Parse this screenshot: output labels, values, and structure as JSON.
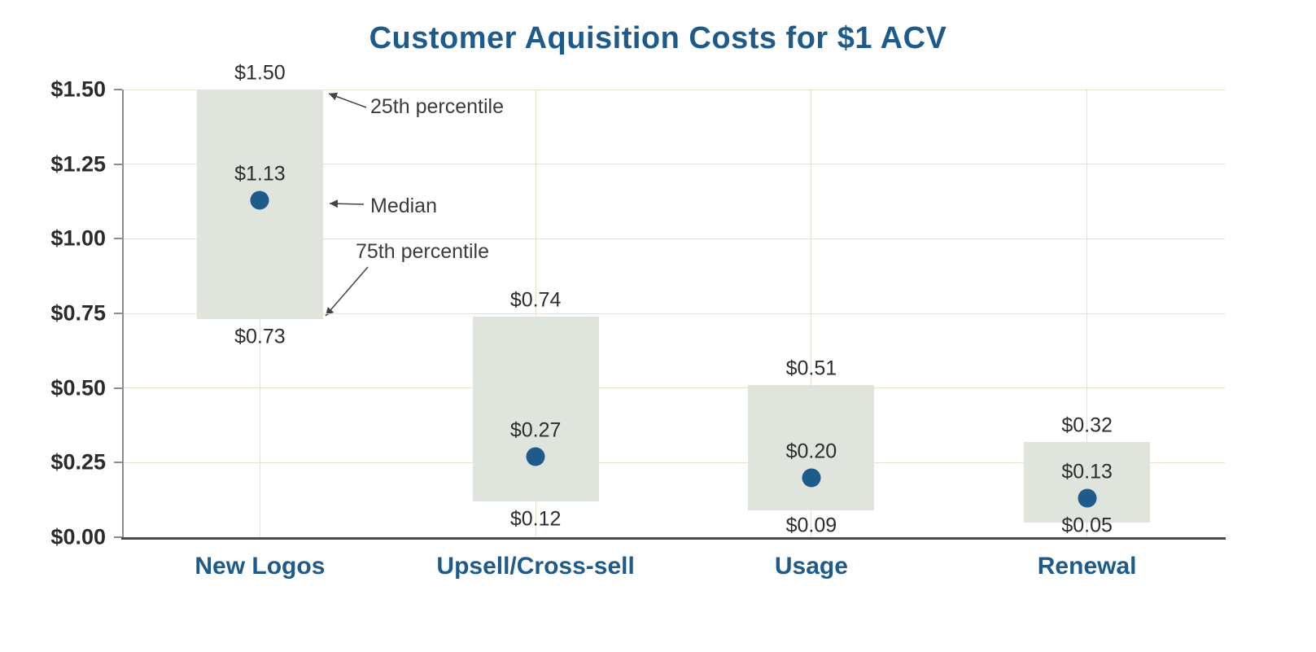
{
  "chart_data": {
    "type": "box-range",
    "title": "Customer Aquisition Costs for $1 ACV",
    "ylim": [
      0,
      1.5
    ],
    "grid": "on",
    "y_ticks": [
      {
        "value": 1.5,
        "label": "$1.50"
      },
      {
        "value": 1.25,
        "label": "$1.25"
      },
      {
        "value": 1.0,
        "label": "$1.00"
      },
      {
        "value": 0.75,
        "label": "$0.75"
      },
      {
        "value": 0.5,
        "label": "$0.50"
      },
      {
        "value": 0.25,
        "label": "$0.25"
      },
      {
        "value": 0.0,
        "label": "$0.00"
      }
    ],
    "categories": [
      {
        "label": "New Logos",
        "p25": 1.5,
        "median": 1.13,
        "p75": 0.73,
        "p25_label": "$1.50",
        "median_label": "$1.13",
        "p75_label": "$0.73"
      },
      {
        "label": "Upsell/Cross-sell",
        "p25": 0.74,
        "median": 0.27,
        "p75": 0.12,
        "p25_label": "$0.74",
        "median_label": "$0.27",
        "p75_label": "$0.12"
      },
      {
        "label": "Usage",
        "p25": 0.51,
        "median": 0.2,
        "p75": 0.09,
        "p25_label": "$0.51",
        "median_label": "$0.20",
        "p75_label": "$0.09"
      },
      {
        "label": "Renewal",
        "p25": 0.32,
        "median": 0.13,
        "p75": 0.05,
        "p25_label": "$0.32",
        "median_label": "$0.13",
        "p75_label": "$0.05"
      }
    ],
    "annotations": {
      "p25": "25th percentile",
      "median": "Median",
      "p75": "75th percentile"
    },
    "colors": {
      "title": "#1e5a8a",
      "box_fill": "#dfe4dd",
      "median_dot": "#1e5a8a",
      "gridline": "#e7dfd0",
      "axis": "#4a4a4a",
      "category_label": "#1e5a8a",
      "value_label": "#2d2d2d"
    }
  }
}
